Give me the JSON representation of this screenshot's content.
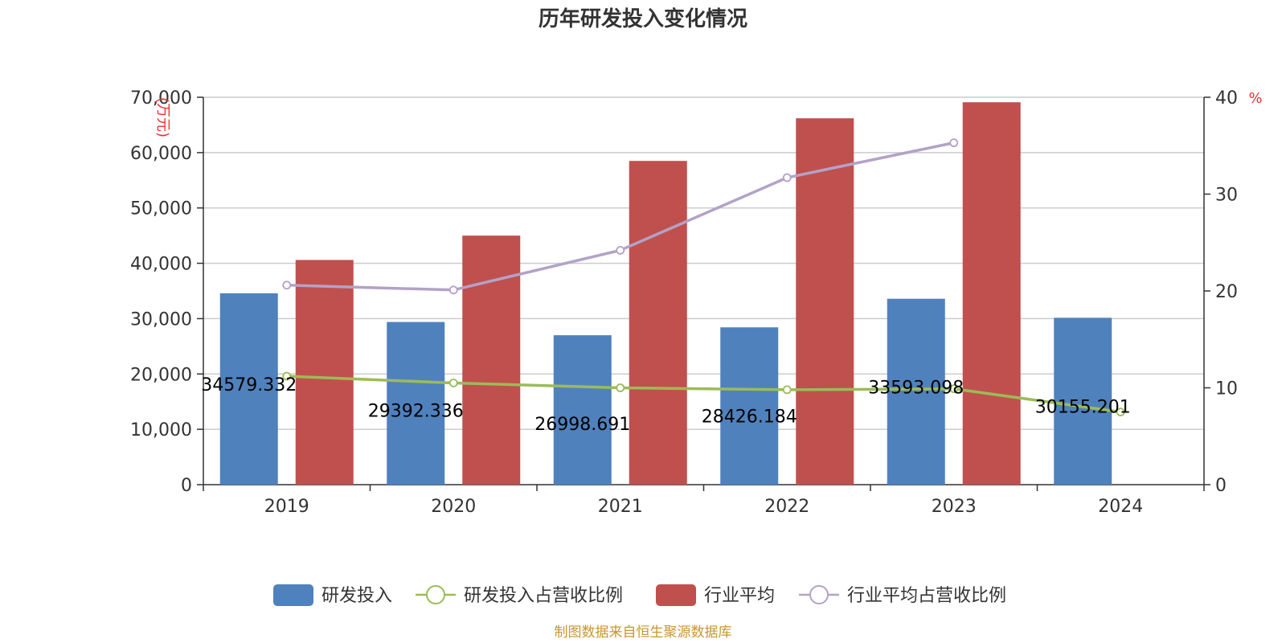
{
  "chart_data": {
    "type": "bar",
    "title": "历年研发投入变化情况",
    "categories": [
      "2019",
      "2020",
      "2021",
      "2022",
      "2023",
      "2024"
    ],
    "left_axis": {
      "unit": "(万元)",
      "ylim": [
        0,
        70000
      ],
      "ticks": [
        0,
        10000,
        20000,
        30000,
        40000,
        50000,
        60000,
        70000
      ],
      "tick_labels": [
        "0",
        "10,000",
        "20,000",
        "30,000",
        "40,000",
        "50,000",
        "60,000",
        "70,000"
      ]
    },
    "right_axis": {
      "unit": "%",
      "ylim": [
        0,
        40
      ],
      "ticks": [
        0,
        10,
        20,
        30,
        40
      ],
      "tick_labels": [
        "0",
        "10",
        "20",
        "30",
        "40"
      ]
    },
    "grid": true,
    "legend_position": "bottom",
    "series": [
      {
        "name": "研发投入",
        "type": "bar",
        "axis": "left",
        "color": "#4f81bd",
        "values": [
          34579.332,
          29392.336,
          26998.691,
          28426.184,
          33593.098,
          30155.201
        ],
        "labels": [
          "34579.332",
          "29392.336",
          "26998.691",
          "28426.184",
          "33593.098",
          "30155.201"
        ]
      },
      {
        "name": "研发投入占营收比例",
        "type": "line",
        "axis": "right",
        "color": "#9bbb59",
        "values": [
          11.2,
          10.5,
          10.0,
          9.8,
          9.9,
          7.5
        ]
      },
      {
        "name": "行业平均",
        "type": "bar",
        "axis": "left",
        "color": "#c0504d",
        "values": [
          40600,
          45000,
          58500,
          66200,
          69100,
          null
        ]
      },
      {
        "name": "行业平均占营收比例",
        "type": "line",
        "axis": "right",
        "color": "#b3a2c7",
        "values": [
          20.6,
          20.1,
          24.2,
          31.7,
          35.3,
          null
        ]
      }
    ],
    "source": "制图数据来自恒生聚源数据库",
    "colors": {
      "unit": "#e8312f",
      "source": "#c8962e",
      "axis": "#333333",
      "grid": "#cccccc"
    }
  }
}
